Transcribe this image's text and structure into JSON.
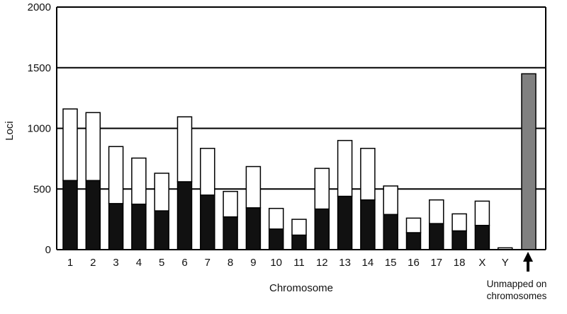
{
  "chart_data": {
    "type": "bar",
    "stacked": true,
    "title": "",
    "xlabel": "Chromosome",
    "ylabel": "Loci",
    "ylim": [
      0,
      2000
    ],
    "yticks": [
      "0",
      "500",
      "1000",
      "1500",
      "2000"
    ],
    "grid": true,
    "legend": "none",
    "categories": [
      "1",
      "2",
      "3",
      "4",
      "5",
      "6",
      "7",
      "8",
      "9",
      "10",
      "11",
      "12",
      "13",
      "14",
      "15",
      "16",
      "17",
      "18",
      "X",
      "Y"
    ],
    "series": [
      {
        "color": "#111111",
        "values": [
          570,
          570,
          380,
          375,
          320,
          560,
          450,
          270,
          345,
          170,
          120,
          335,
          440,
          410,
          290,
          140,
          215,
          155,
          200,
          0
        ]
      },
      {
        "color": "#ffffff",
        "values": [
          590,
          560,
          470,
          380,
          310,
          535,
          385,
          210,
          340,
          170,
          130,
          335,
          460,
          425,
          235,
          120,
          195,
          140,
          200,
          15
        ]
      }
    ],
    "extra_bar": {
      "label": "Unmapped on chromosomes",
      "value": 1450,
      "color": "#808080"
    },
    "annotation_arrow": "up"
  }
}
